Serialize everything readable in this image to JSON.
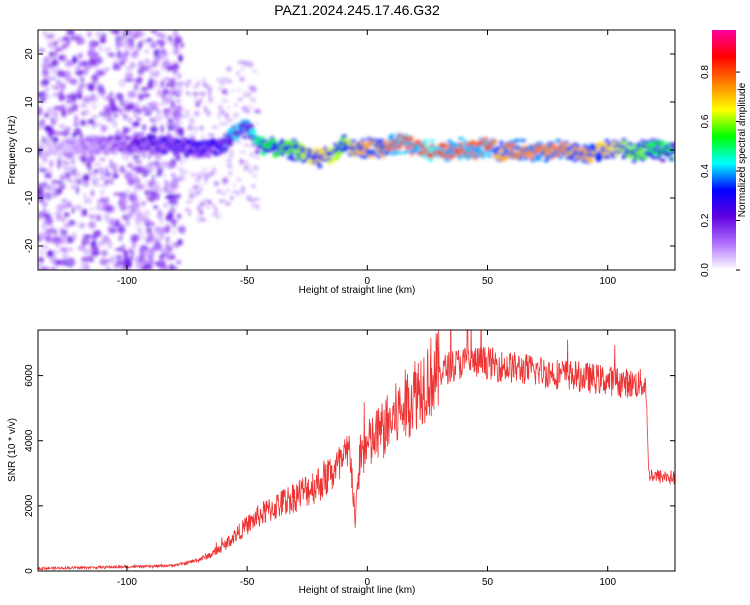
{
  "title": "PAZ1.2024.245.17.46.G32",
  "chart_data": [
    {
      "type": "heatmap",
      "title": "PAZ1.2024.245.17.46.G32",
      "xlabel": "Height of straight line (km)",
      "ylabel": "Frequency (Hz)",
      "xlim": [
        -137,
        128
      ],
      "ylim": [
        -25,
        25
      ],
      "xticks": [
        -100,
        -50,
        0,
        50,
        100
      ],
      "yticks": [
        -20,
        -10,
        0,
        10,
        20
      ],
      "colorbar": {
        "label": "Normalized spectral amplitude",
        "range": [
          0,
          0.97
        ],
        "ticks": [
          0.0,
          0.2,
          0.4,
          0.6,
          0.8
        ],
        "colormap": [
          "#ffffff",
          "#b070ff",
          "#6000e0",
          "#0000ff",
          "#00ffff",
          "#00ff00",
          "#ffff00",
          "#ff8000",
          "#ff0000",
          "#ff00a0"
        ]
      },
      "ridge": {
        "x": [
          -137,
          -110,
          -90,
          -80,
          -70,
          -60,
          -55,
          -50,
          -45,
          -40,
          -35,
          -30,
          -25,
          -20,
          -15,
          -10,
          -5,
          0,
          5,
          10,
          15,
          20,
          25,
          30,
          35,
          40,
          45,
          50,
          55,
          60,
          65,
          70,
          75,
          80,
          85,
          90,
          95,
          100,
          105,
          110,
          115,
          120,
          128
        ],
        "y": [
          0,
          1,
          1.5,
          1,
          0,
          1,
          3.5,
          5,
          1,
          0.5,
          0,
          0,
          -1,
          -1.5,
          -1,
          1,
          0,
          0.5,
          0,
          1,
          1.5,
          0.5,
          0,
          -0.5,
          0,
          0.5,
          0,
          1,
          -0.5,
          0,
          0,
          -0.5,
          -0.5,
          0,
          -0.5,
          -1,
          -0.5,
          0,
          0.5,
          -0.5,
          0,
          0,
          -0.5
        ],
        "amplitude": [
          0.05,
          0.15,
          0.25,
          0.3,
          0.3,
          0.35,
          0.45,
          0.4,
          0.5,
          0.55,
          0.6,
          0.6,
          0.65,
          0.7,
          0.65,
          0.6,
          0.7,
          0.75,
          0.7,
          0.8,
          0.85,
          0.8,
          0.9,
          0.85,
          0.8,
          0.85,
          0.8,
          0.85,
          0.7,
          0.8,
          0.75,
          0.8,
          0.75,
          0.8,
          0.7,
          0.75,
          0.7,
          0.7,
          0.65,
          0.6,
          0.6,
          0.55,
          0.5
        ]
      }
    },
    {
      "type": "line",
      "xlabel": "Height of straight line (km)",
      "ylabel": "SNR (10 * v/v)",
      "xlim": [
        -137,
        128
      ],
      "ylim": [
        0,
        7400
      ],
      "xticks": [
        -100,
        -50,
        0,
        50,
        100
      ],
      "yticks": [
        0,
        2000,
        4000,
        6000
      ],
      "color": "#ee3333",
      "series": [
        {
          "x": [
            -137,
            -120,
            -100,
            -90,
            -80,
            -75,
            -70,
            -65,
            -60,
            -55,
            -50,
            -45,
            -40,
            -35,
            -30,
            -25,
            -20,
            -15,
            -10,
            -7,
            -6,
            -5,
            -3,
            0,
            5,
            10,
            15,
            20,
            25,
            30,
            35,
            40,
            45,
            50,
            55,
            60,
            65,
            70,
            75,
            80,
            85,
            90,
            95,
            100,
            105,
            110,
            115,
            116,
            117,
            120,
            125,
            128
          ],
          "y": [
            80,
            100,
            130,
            140,
            180,
            250,
            350,
            500,
            750,
            1100,
            1400,
            1700,
            1900,
            2100,
            2300,
            2500,
            2700,
            3000,
            3300,
            3700,
            2500,
            1500,
            3600,
            3800,
            4200,
            4600,
            5000,
            5500,
            5900,
            6100,
            6300,
            6400,
            6400,
            6400,
            6300,
            6250,
            6200,
            6150,
            6100,
            6050,
            6000,
            5950,
            5900,
            5850,
            5800,
            5750,
            5750,
            5700,
            3000,
            2900,
            2900,
            2850
          ]
        }
      ]
    }
  ]
}
